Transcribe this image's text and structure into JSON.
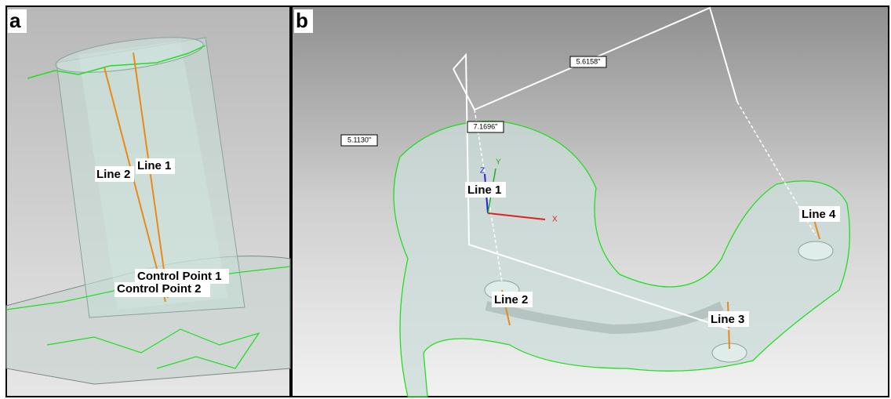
{
  "panel_a": {
    "label": "a",
    "annotations": [
      "Line 2",
      "Line 1",
      "Control Point 1",
      "Control Point 2"
    ]
  },
  "panel_b": {
    "label": "b",
    "measurements": [
      "5.6158\"",
      "7.1696\"",
      "5.1130\""
    ],
    "axes": [
      "Z",
      "Y",
      "X"
    ],
    "annotations": [
      "Line 1",
      "Line 2",
      "Line 3",
      "Line 4"
    ]
  }
}
